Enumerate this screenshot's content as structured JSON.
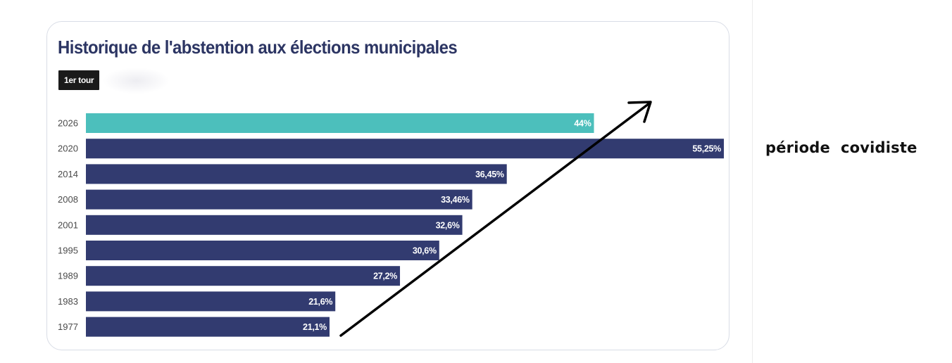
{
  "side_note": "période  covidiste",
  "round_tab": "1er tour",
  "colors": {
    "highlight": "#4cbfbc",
    "bar": "#323b70",
    "title": "#2c3563",
    "year_label": "#4a4a4a",
    "arrow": "#000000"
  },
  "chart_data": {
    "type": "bar",
    "orientation": "horizontal",
    "title": "Historique de l'abstention aux élections municipales",
    "xlabel": "",
    "ylabel": "",
    "xlim": [
      0,
      55.25
    ],
    "grid": false,
    "categories": [
      "2026",
      "2020",
      "2014",
      "2008",
      "2001",
      "1995",
      "1989",
      "1983",
      "1977"
    ],
    "values": [
      44,
      55.25,
      36.45,
      33.46,
      32.6,
      30.6,
      27.2,
      21.6,
      21.1
    ],
    "labels": [
      "44%",
      "55,25%",
      "36,45%",
      "33,46%",
      "32,6%",
      "30,6%",
      "27,2%",
      "21,6%",
      "21,1%"
    ],
    "highlighted": [
      "2026"
    ],
    "annotations": [
      {
        "type": "arrow",
        "description": "upward trend arrow pointing toward top-right"
      }
    ]
  }
}
